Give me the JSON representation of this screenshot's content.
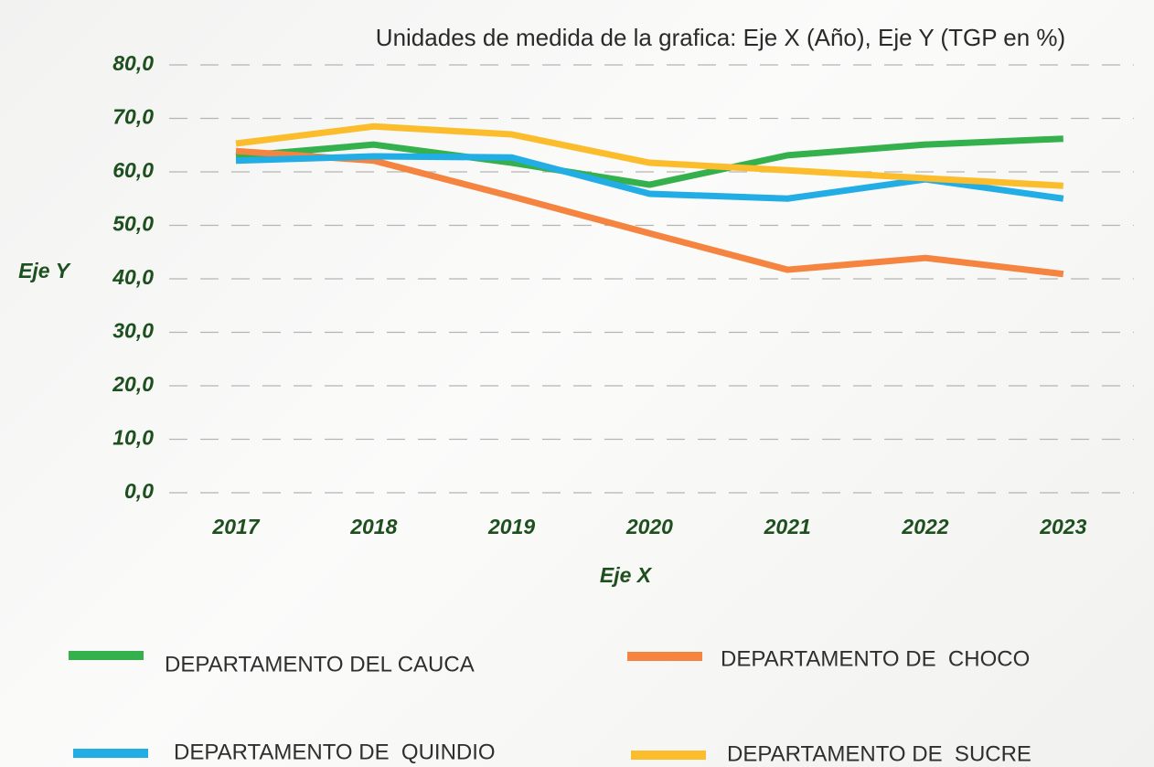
{
  "chart_data": {
    "type": "line",
    "title": "Unidades de medida de la grafica: Eje X (Año), Eje Y (TGP en %)",
    "x_label": "Eje X",
    "y_label": "Eje Y",
    "categories": [
      "2017",
      "2018",
      "2019",
      "2020",
      "2021",
      "2022",
      "2023"
    ],
    "series": [
      {
        "name": "DEPARTAMENTO DEL CAUCA",
        "color": "#34b04c",
        "values": [
          62.9,
          65.1,
          61.7,
          57.6,
          63.1,
          65.1,
          66.2
        ]
      },
      {
        "name": "DEPARTAMENTO DE  CHOCO",
        "color": "#f4843f",
        "values": [
          63.9,
          62.1,
          55.4,
          48.5,
          41.7,
          43.9,
          40.9
        ]
      },
      {
        "name": "DEPARTAMENTO DE  QUINDIO",
        "color": "#22aee4",
        "values": [
          62.1,
          62.9,
          62.7,
          55.9,
          55.0,
          58.6,
          55.0
        ]
      },
      {
        "name": "DEPARTAMENTO DE  SUCRE",
        "color": "#fbbd2c",
        "values": [
          65.3,
          68.5,
          67.0,
          61.7,
          60.3,
          58.8,
          57.4
        ]
      }
    ],
    "ylim": [
      0,
      80
    ],
    "yticks": [
      {
        "value": 0,
        "label": "0,0"
      },
      {
        "value": 10,
        "label": "10,0"
      },
      {
        "value": 20,
        "label": "20,0"
      },
      {
        "value": 30,
        "label": "30,0"
      },
      {
        "value": 40,
        "label": "40,0"
      },
      {
        "value": 50,
        "label": "50,0"
      },
      {
        "value": 60,
        "label": "60,0"
      },
      {
        "value": 70,
        "label": "70,0"
      },
      {
        "value": 80,
        "label": "80,0"
      }
    ],
    "grid": true
  }
}
